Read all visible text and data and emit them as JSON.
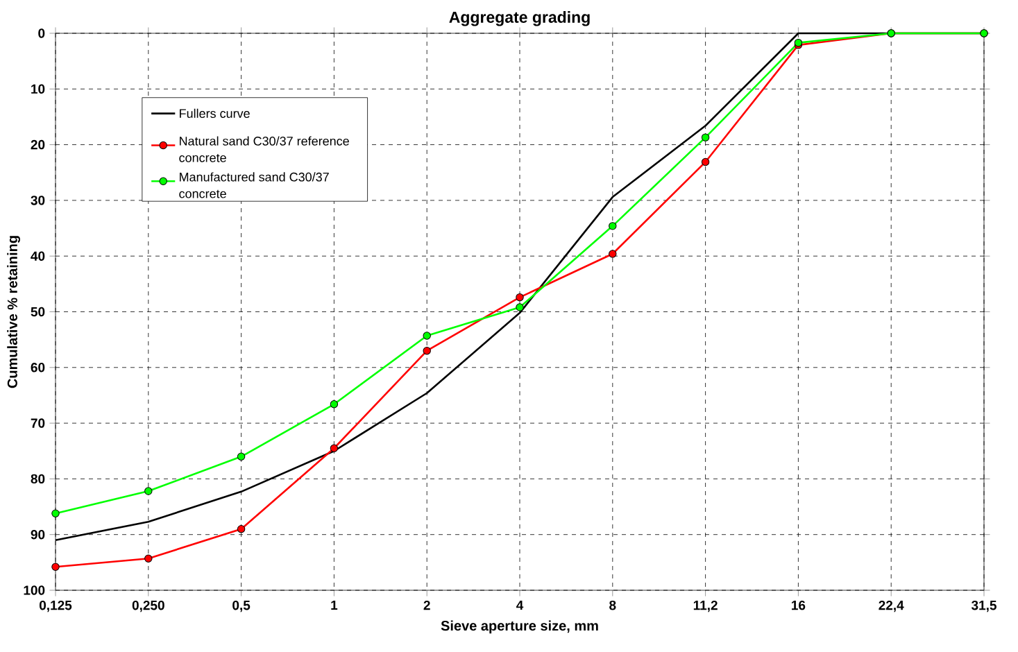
{
  "chart_data": {
    "type": "line",
    "title": "Aggregate grading",
    "xlabel": "Sieve aperture size, mm",
    "ylabel": "Cumulative % retaining",
    "categories": [
      "0,125",
      "0,250",
      "0,5",
      "1",
      "2",
      "4",
      "8",
      "11,2",
      "16",
      "22,4",
      "31,5"
    ],
    "series": [
      {
        "name": "Fullers curve",
        "color": "#000000",
        "marker": "none",
        "values": [
          91,
          87.7,
          82.3,
          75,
          64.6,
          50.2,
          29.4,
          16.6,
          0,
          0,
          0
        ]
      },
      {
        "name": "Natural sand C30/37 reference concrete",
        "color": "#ff0000",
        "marker": "circle",
        "values": [
          95.8,
          94.3,
          89,
          74.5,
          57,
          47.4,
          39.6,
          23.1,
          2.1,
          0,
          0
        ]
      },
      {
        "name": "Manufactured sand C30/37 concrete",
        "color": "#00ff00",
        "marker": "circle",
        "values": [
          86.2,
          82.2,
          76,
          66.6,
          54.3,
          49.2,
          34.6,
          18.7,
          1.7,
          0,
          0
        ]
      }
    ],
    "ylim": [
      100,
      0
    ],
    "yticks": [
      0,
      10,
      20,
      30,
      40,
      50,
      60,
      70,
      80,
      90,
      100
    ],
    "grid": true,
    "legend": "top left",
    "line_style": "solid"
  }
}
